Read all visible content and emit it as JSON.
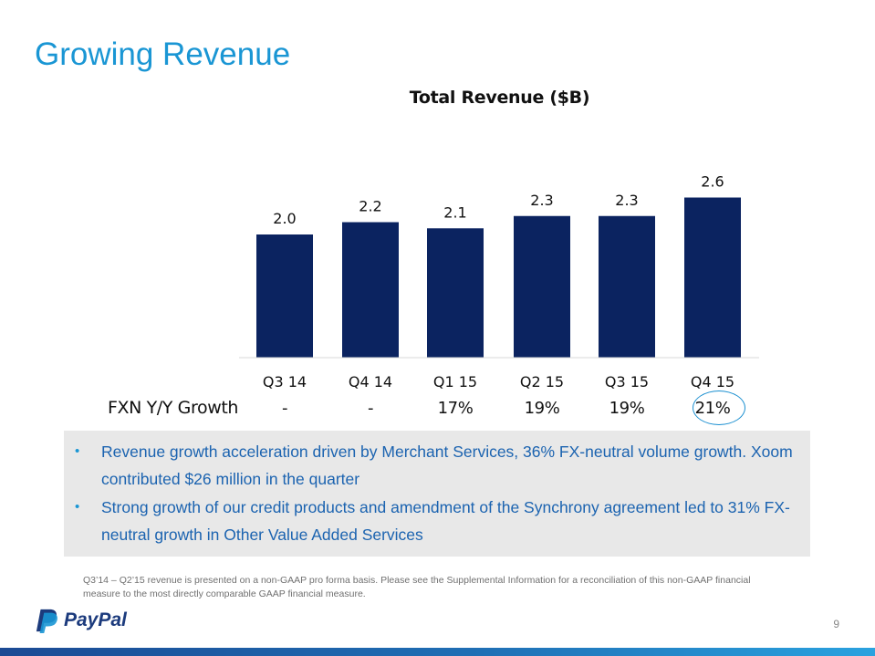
{
  "slide": {
    "title": "Growing Revenue",
    "page_number": "9"
  },
  "chart_data": {
    "type": "bar",
    "title": "Total Revenue ($B)",
    "categories": [
      "Q3 14",
      "Q4 14",
      "Q1 15",
      "Q2 15",
      "Q3 15",
      "Q4 15"
    ],
    "values": [
      2.0,
      2.2,
      2.1,
      2.3,
      2.3,
      2.6
    ],
    "data_labels": [
      "2.0",
      "2.2",
      "2.1",
      "2.3",
      "2.3",
      "2.6"
    ],
    "ylim": [
      0,
      3.1
    ],
    "grid": false,
    "bar_color": "#0b2360"
  },
  "growth_row": {
    "label": "FXN Y/Y Growth",
    "values": [
      "-",
      "-",
      "17%",
      "19%",
      "19%",
      "21%"
    ],
    "highlight_color": "#1a8fd0"
  },
  "bullets": [
    {
      "text": "Revenue growth acceleration driven by Merchant Services, 36% FX-neutral volume growth. Xoom contributed $26 million in the quarter"
    },
    {
      "text": "Strong growth of our credit products and amendment of the Synchrony agreement led to 31% FX-neutral growth in Other Value Added Services"
    }
  ],
  "footnote": "Q3’14 – Q2’15 revenue is presented on a non-GAAP pro forma basis. Please see the Supplemental Information for a reconciliation of this non-GAAP financial measure to the most directly comparable GAAP financial measure.",
  "logo": {
    "text": "PayPal",
    "icon": "paypal-p-icon"
  },
  "colors": {
    "title": "#1a96d4",
    "bullet_text": "#1b63b0",
    "bottom_bar": "#1f5fa8"
  }
}
